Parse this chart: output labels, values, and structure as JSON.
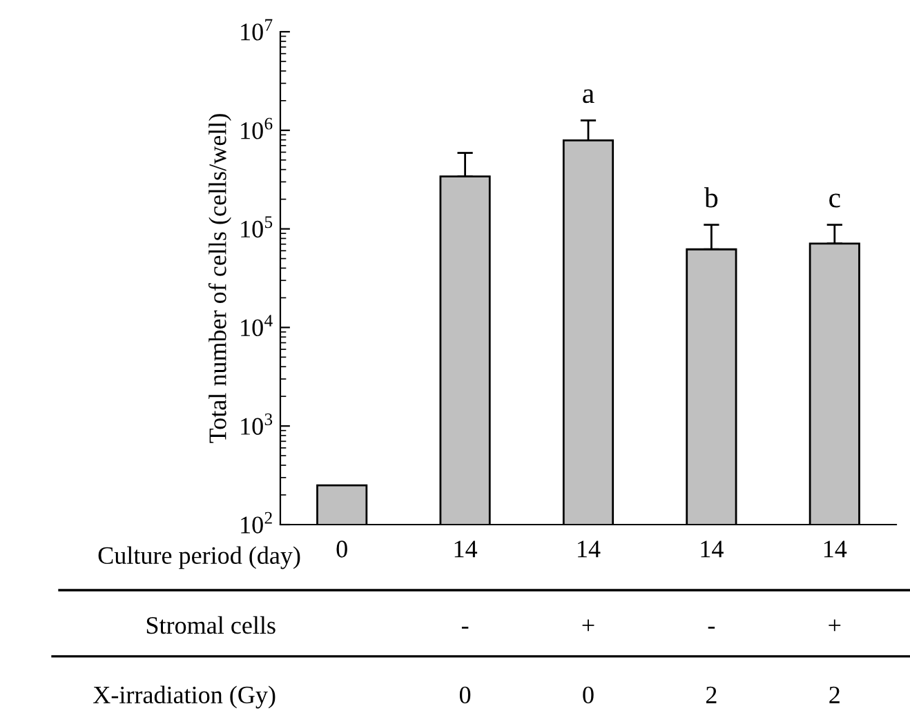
{
  "chart_data": {
    "type": "bar",
    "ylabel": "Total number of cells (cells/well)",
    "xlabel": "Culture period (day)",
    "categories": [
      "0",
      "14",
      "14",
      "14",
      "14"
    ],
    "values": [
      250,
      340000,
      790000,
      62000,
      71000
    ],
    "errors": [
      null,
      [
        340000,
        590000
      ],
      [
        790000,
        1260000
      ],
      [
        62000,
        110000
      ],
      [
        71000,
        110000
      ]
    ],
    "color": "#c0c0c0",
    "log": "y",
    "ylim": [
      100,
      10000000
    ],
    "yticks": [
      {
        "value": 100,
        "label": "10$^{2}$"
      },
      {
        "value": 1000,
        "label": "10$^{3}$"
      },
      {
        "value": 10000,
        "label": "10$^{4}$"
      },
      {
        "value": 100000,
        "label": "10$^{5}$"
      },
      {
        "value": 1000000,
        "label": "10$^{6}$"
      },
      {
        "value": 10000000,
        "label": "10$^{7}$"
      }
    ],
    "grid": false,
    "annotations": [
      "a",
      "b",
      "c",
      "Stromal cells",
      "-",
      "+",
      "-",
      "+",
      "X-irradiation (Gy)",
      "0",
      "0",
      "2",
      "2"
    ]
  }
}
